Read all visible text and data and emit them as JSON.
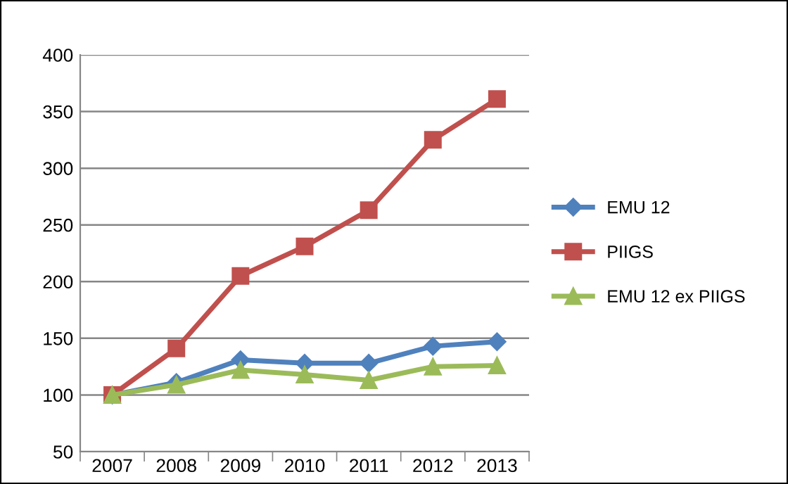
{
  "chart_data": {
    "type": "line",
    "categories": [
      "2007",
      "2008",
      "2009",
      "2010",
      "2011",
      "2012",
      "2013"
    ],
    "series": [
      {
        "name": "EMU 12",
        "color": "#4f81bd",
        "marker": "diamond",
        "values": [
          100,
          111,
          131,
          128,
          128,
          143,
          147
        ]
      },
      {
        "name": "PIIGS",
        "color": "#c0504d",
        "marker": "square",
        "values": [
          100,
          141,
          205,
          231,
          263,
          325,
          361
        ]
      },
      {
        "name": "EMU 12 ex PIIGS",
        "color": "#9bbb59",
        "marker": "triangle",
        "values": [
          100,
          109,
          122,
          118,
          113,
          125,
          126
        ]
      }
    ],
    "ylim": [
      50,
      400
    ],
    "yticks": [
      50,
      100,
      150,
      200,
      250,
      300,
      350,
      400
    ],
    "grid": "y",
    "legend": "right",
    "line_style": "solid"
  }
}
